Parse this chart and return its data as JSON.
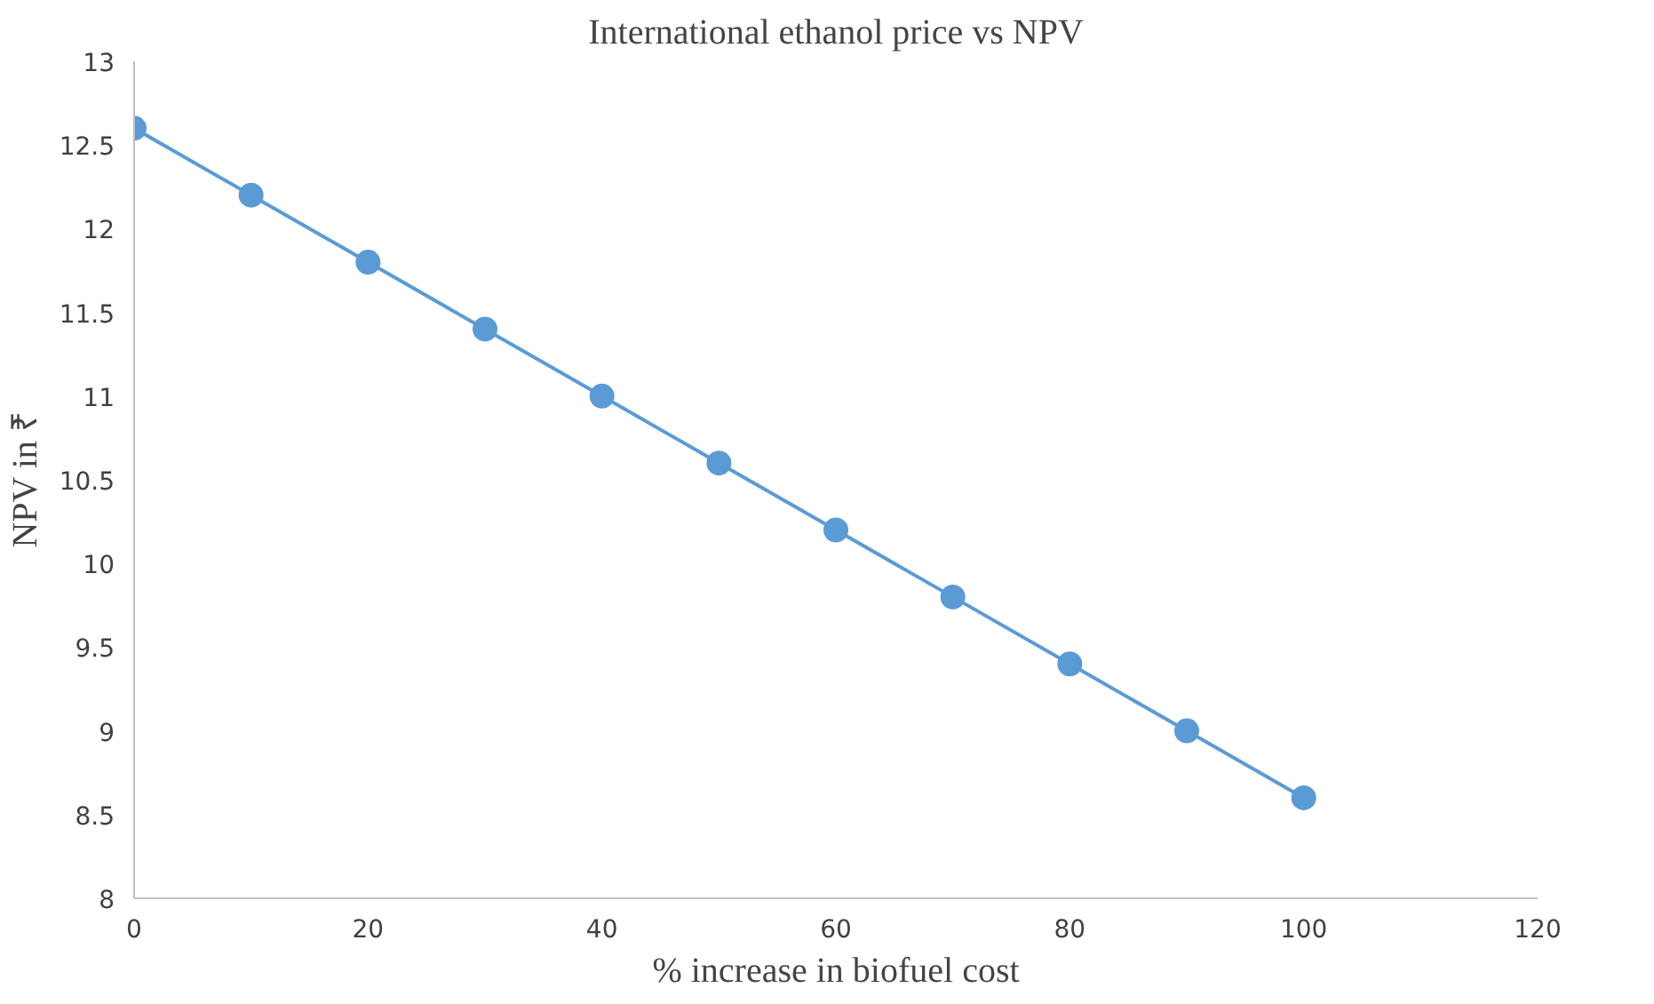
{
  "chart_data": {
    "type": "line",
    "title": "International ethanol price vs NPV",
    "xlabel": "% increase in biofuel cost",
    "ylabel": "NPV in ₹",
    "x": [
      0,
      10,
      20,
      30,
      40,
      50,
      60,
      70,
      80,
      90,
      100
    ],
    "series": [
      {
        "color": "#5b9bd5",
        "values": [
          12.6,
          12.2,
          11.8,
          11.4,
          11.0,
          10.6,
          10.2,
          9.8,
          9.4,
          9.0,
          8.6
        ]
      }
    ],
    "xlim": [
      0,
      120
    ],
    "xticks": [
      0,
      20,
      40,
      60,
      80,
      100,
      120
    ],
    "ylim": [
      8,
      13
    ],
    "yticks": [
      8,
      8.5,
      9,
      9.5,
      10,
      10.5,
      11,
      11.5,
      12,
      12.5,
      13
    ],
    "grid": false,
    "marker": "circle",
    "line_style": "solid"
  }
}
